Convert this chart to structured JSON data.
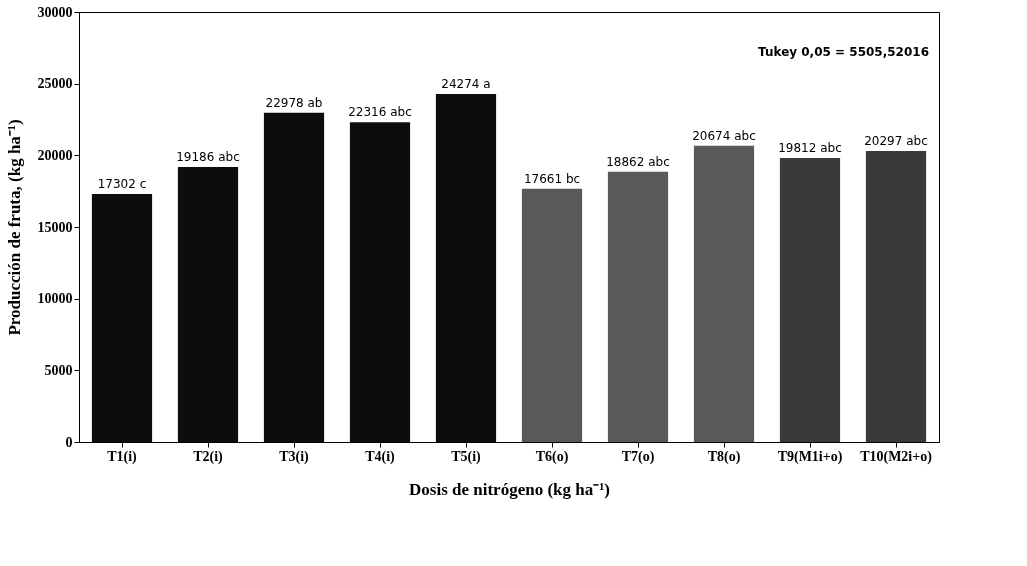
{
  "chart_data": {
    "type": "bar",
    "xlabel": "Dosis de nitrógeno (kg ha⁻¹)",
    "ylabel": "Producción de fruta, (kg ha⁻¹)",
    "categories": [
      "T1(i)",
      "T2(i)",
      "T3(i)",
      "T4(i)",
      "T5(i)",
      "T6(o)",
      "T7(o)",
      "T8(o)",
      "T9(M1i+o)",
      "T10(M2i+o)"
    ],
    "values": [
      17302,
      19186,
      22978,
      22316,
      24274,
      17661,
      18862,
      20674,
      19812,
      20297
    ],
    "colors": [
      "#0d0d0d",
      "#0d0d0d",
      "#0d0d0d",
      "#0d0d0d",
      "#0d0d0d",
      "#595959",
      "#595959",
      "#595959",
      "#3a3a3a",
      "#3a3a3a"
    ],
    "value_labels": [
      "17302 c",
      "19186 abc",
      "22978 ab",
      "22316 abc",
      "24274 a",
      "17661 bc",
      "18862 abc",
      "20674 abc",
      "19812 abc",
      "20297 abc"
    ],
    "ylim": [
      0,
      30000
    ],
    "yticks": [
      0,
      5000,
      10000,
      15000,
      20000,
      25000,
      30000
    ],
    "annotations": [
      "Tukey 0,05 = 5505,52016"
    ],
    "grid": false,
    "legend": false
  }
}
